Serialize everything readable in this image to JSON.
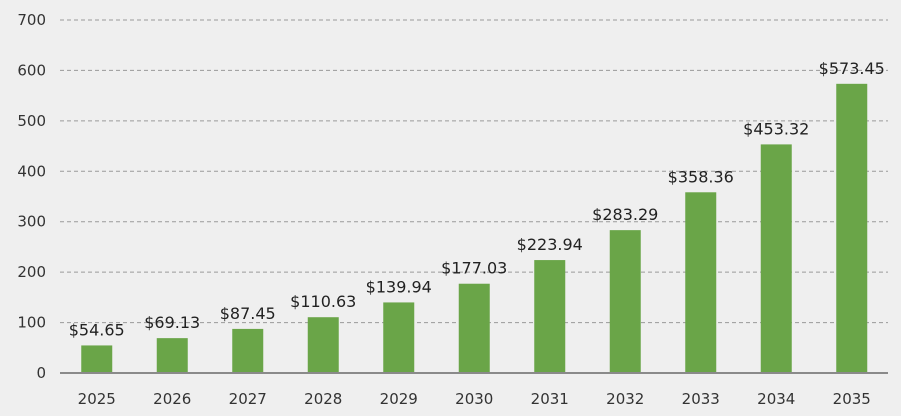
{
  "chart_data": {
    "type": "bar",
    "title": "",
    "xlabel": "",
    "ylabel": "",
    "categories": [
      "2025",
      "2026",
      "2027",
      "2028",
      "2029",
      "2030",
      "2031",
      "2032",
      "2033",
      "2034",
      "2035"
    ],
    "values": [
      54.65,
      69.13,
      87.45,
      110.63,
      139.94,
      177.03,
      223.94,
      283.29,
      358.36,
      453.32,
      573.45
    ],
    "data_labels": [
      "$54.65",
      "$69.13",
      "$87.45",
      "$110.63",
      "$139.94",
      "$177.03",
      "$223.94",
      "$283.29",
      "$358.36",
      "$453.32",
      "$573.45"
    ],
    "ylim": [
      0,
      700
    ],
    "y_ticks": [
      0,
      100,
      200,
      300,
      400,
      500,
      600,
      700
    ],
    "grid": true,
    "legend": "none",
    "colors": {
      "bar": "#6aa548",
      "background": "#efefef"
    }
  }
}
